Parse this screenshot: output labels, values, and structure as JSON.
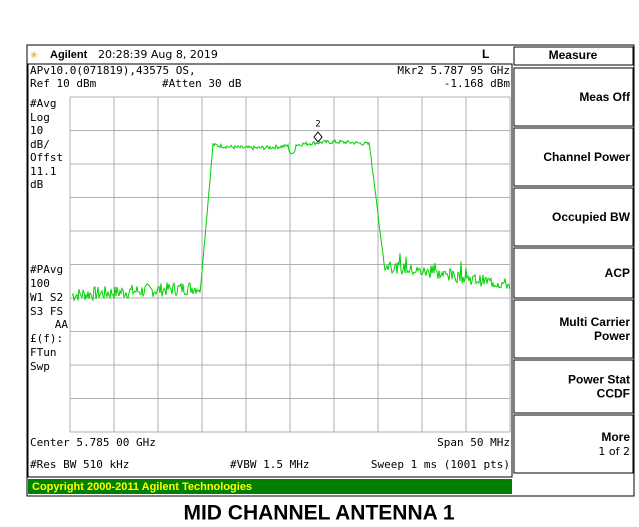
{
  "header": {
    "brand": "Agilent",
    "time": "20:28:39  Aug 8, 2019",
    "mode": "L"
  },
  "status": {
    "line1_left": "APv10.0(071819),43575 OS,",
    "marker": "Mkr2  5.787 95 GHz",
    "ref": "Ref 10 dBm",
    "atten": "#Atten 30 dB",
    "marker_level": "-1.168 dBm",
    "marker_number": "2"
  },
  "left_labels": [
    "#Avg",
    "Log",
    "10",
    "dB/",
    "Offst",
    "11.1",
    "dB",
    "#PAvg",
    "100",
    "W1  S2",
    "S3  FS",
    "AA",
    "£(f):",
    "FTun",
    "Swp"
  ],
  "footer": {
    "center": "Center 5.785 00 GHz",
    "span": "Span 50 MHz",
    "rbw": "#Res BW 510 kHz",
    "vbw": "#VBW 1.5 MHz",
    "sweep": "Sweep 1 ms (1001 pts)"
  },
  "copyright": "Copyright 2000-2011 Agilent Technologies",
  "menu": {
    "title": "Measure",
    "items": [
      [
        "Meas Off"
      ],
      [
        "Channel Power"
      ],
      [
        "Occupied BW"
      ],
      [
        "ACP"
      ],
      [
        "Multi Carrier",
        "Power"
      ],
      [
        "Power Stat",
        "CCDF"
      ],
      [
        "More",
        "1 of 2"
      ]
    ]
  },
  "caption": "MID CHANNEL ANTENNA 1"
}
